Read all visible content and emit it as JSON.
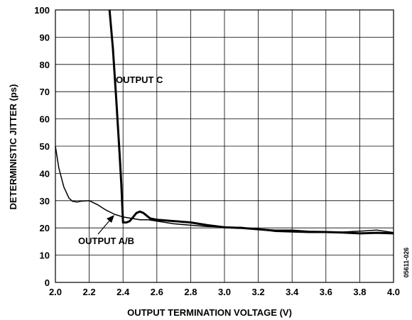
{
  "chart_data": {
    "type": "line",
    "xlabel": "OUTPUT TERMINATION VOLTAGE (V)",
    "ylabel": "DETERMINISTIC JITTER (ps)",
    "xlim": [
      2.0,
      4.0
    ],
    "ylim": [
      0,
      100
    ],
    "xticks": [
      "2.0",
      "2.2",
      "2.4",
      "2.6",
      "2.8",
      "3.0",
      "3.2",
      "3.4",
      "3.6",
      "3.8",
      "4.0"
    ],
    "yticks": [
      "0",
      "10",
      "20",
      "30",
      "40",
      "50",
      "60",
      "70",
      "80",
      "90",
      "100"
    ],
    "grid": true,
    "line_color": "#000000",
    "series": [
      {
        "name": "OUTPUT C",
        "x": [
          2.32,
          2.34,
          2.36,
          2.38,
          2.39,
          2.4,
          2.42,
          2.44,
          2.46,
          2.48,
          2.5,
          2.52,
          2.54,
          2.56,
          2.6,
          2.7,
          2.8,
          2.9,
          3.0,
          3.1,
          3.2,
          3.3,
          3.4,
          3.5,
          3.6,
          3.7,
          3.8,
          3.9,
          4.0
        ],
        "y": [
          100,
          86,
          67,
          47,
          36,
          22,
          22,
          22.5,
          24,
          25.5,
          26,
          25.5,
          24.5,
          23.5,
          23,
          22.5,
          22,
          21,
          20.2,
          20,
          19.5,
          19,
          19,
          18.6,
          18.5,
          18.3,
          18,
          18.2,
          18
        ]
      },
      {
        "name": "OUTPUT A/B",
        "x": [
          2.0,
          2.02,
          2.05,
          2.08,
          2.1,
          2.13,
          2.15,
          2.2,
          2.25,
          2.3,
          2.35,
          2.4,
          2.45,
          2.5,
          2.55,
          2.6,
          2.7,
          2.8,
          2.9,
          3.0,
          3.1,
          3.2,
          3.3,
          3.4,
          3.5,
          3.6,
          3.7,
          3.8,
          3.9,
          4.0
        ],
        "y": [
          50,
          42,
          35,
          31,
          29.8,
          29.5,
          29.8,
          30,
          28.5,
          26.5,
          25,
          24,
          23.5,
          23,
          23,
          22.5,
          21.5,
          21,
          20.5,
          20.3,
          20.2,
          19.5,
          18.7,
          18.5,
          18.3,
          18.3,
          18.5,
          18.8,
          19.2,
          18.3
        ]
      }
    ],
    "annotations": [
      {
        "text": "OUTPUT C",
        "series": 0
      },
      {
        "text": "OUTPUT A/B",
        "series": 1
      }
    ],
    "figure_id": "05611-026"
  }
}
